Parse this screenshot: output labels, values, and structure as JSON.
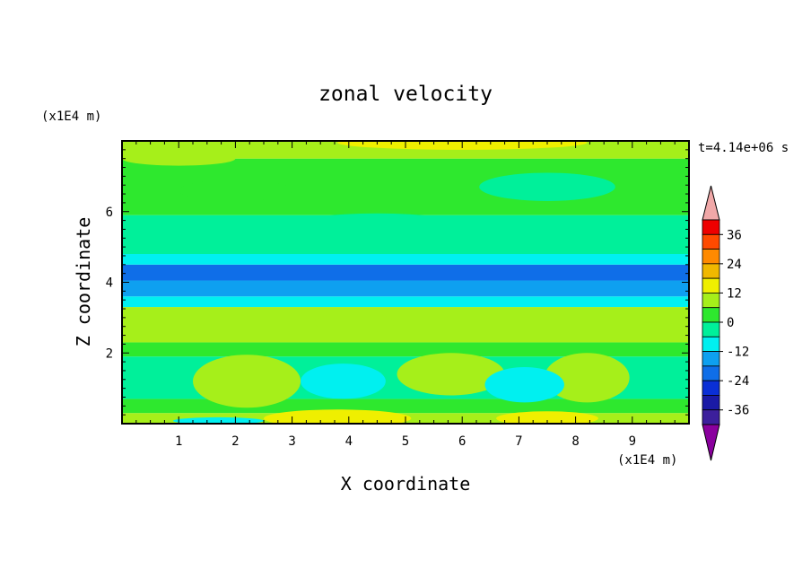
{
  "chart_data": {
    "type": "heatmap",
    "title": "zonal velocity",
    "xlabel": "X coordinate",
    "ylabel": "Z coordinate",
    "x_unit": "(x1E4 m)",
    "y_unit": "(x1E4 m)",
    "time_label": "t=4.14e+06 s",
    "xlim": [
      0,
      10
    ],
    "ylim": [
      0,
      8
    ],
    "x_ticks": [
      1,
      2,
      3,
      4,
      5,
      6,
      7,
      8,
      9
    ],
    "y_ticks": [
      2,
      4,
      6
    ],
    "colorbar": {
      "levels": [
        -42,
        -36,
        -30,
        -24,
        -18,
        -12,
        -6,
        0,
        6,
        12,
        18,
        24,
        30,
        36,
        42
      ],
      "tick_values": [
        -36,
        -24,
        -12,
        0,
        12,
        24,
        36
      ],
      "colors": [
        "#8a009e",
        "#3c1f9c",
        "#1a1aa6",
        "#0a2fd6",
        "#0f6ee8",
        "#0ea0f0",
        "#00f0f0",
        "#00f09a",
        "#2ee82e",
        "#a6ef1a",
        "#efef00",
        "#f0b800",
        "#ff8a00",
        "#ff4a00",
        "#ee0000",
        "#f0a8a8"
      ],
      "under_color": "#8a009e",
      "over_color": "#f0a8a8"
    },
    "bands": [
      {
        "z": [
          0.0,
          0.3
        ],
        "value": 6
      },
      {
        "z": [
          0.3,
          0.7
        ],
        "value": 0
      },
      {
        "z": [
          0.7,
          1.9
        ],
        "value": -3
      },
      {
        "z": [
          1.9,
          2.3
        ],
        "value": 2
      },
      {
        "z": [
          2.3,
          3.3
        ],
        "value": 6
      },
      {
        "z": [
          3.3,
          3.6
        ],
        "value": -10
      },
      {
        "z": [
          3.6,
          4.05
        ],
        "value": -14
      },
      {
        "z": [
          4.05,
          4.5
        ],
        "value": -20
      },
      {
        "z": [
          4.5,
          4.8
        ],
        "value": -12
      },
      {
        "z": [
          4.8,
          5.9
        ],
        "value": -4
      },
      {
        "z": [
          5.9,
          7.5
        ],
        "value": 2
      },
      {
        "z": [
          7.5,
          8.0
        ],
        "value": 6
      }
    ],
    "blobs": [
      {
        "x": 2.2,
        "z": 1.2,
        "rx": 0.95,
        "rz": 0.75,
        "value": 8
      },
      {
        "x": 5.8,
        "z": 1.4,
        "rx": 0.95,
        "rz": 0.6,
        "value": 8
      },
      {
        "x": 8.2,
        "z": 1.3,
        "rx": 0.75,
        "rz": 0.7,
        "value": 8
      },
      {
        "x": 3.9,
        "z": 1.2,
        "rx": 0.75,
        "rz": 0.5,
        "value": -9
      },
      {
        "x": 7.1,
        "z": 1.1,
        "rx": 0.7,
        "rz": 0.5,
        "value": -9
      },
      {
        "x": 3.8,
        "z": 0.15,
        "rx": 1.3,
        "rz": 0.25,
        "value": 14
      },
      {
        "x": 7.5,
        "z": 0.15,
        "rx": 0.9,
        "rz": 0.2,
        "value": 12
      },
      {
        "x": 1.7,
        "z": 0.08,
        "rx": 0.8,
        "rz": 0.1,
        "value": -10
      },
      {
        "x": 4.1,
        "z": 2.85,
        "rx": 0.7,
        "rz": 0.3,
        "value": 11
      },
      {
        "x": 6.0,
        "z": 7.95,
        "rx": 2.2,
        "rz": 0.2,
        "value": 14
      },
      {
        "x": 1.0,
        "z": 7.5,
        "rx": 1.0,
        "rz": 0.2,
        "value": 10
      },
      {
        "x": 4.5,
        "z": 5.6,
        "rx": 1.5,
        "rz": 0.35,
        "value": -6
      },
      {
        "x": 7.5,
        "z": 6.7,
        "rx": 1.2,
        "rz": 0.4,
        "value": -5
      },
      {
        "x": 2.0,
        "z": 6.6,
        "rx": 1.0,
        "rz": 0.3,
        "value": 0
      }
    ]
  }
}
